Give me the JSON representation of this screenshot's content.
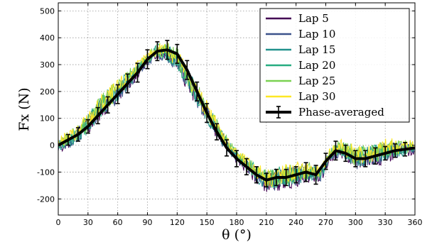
{
  "chart_data": {
    "type": "line",
    "xlabel": "θ (°)",
    "ylabel": "Fx (N)",
    "xlim": [
      0,
      360
    ],
    "ylim": [
      -260,
      530
    ],
    "x_ticks": [
      0,
      30,
      60,
      90,
      120,
      150,
      180,
      210,
      240,
      270,
      300,
      330,
      360
    ],
    "y_ticks": [
      -200,
      -100,
      0,
      100,
      200,
      300,
      400,
      500
    ],
    "grid": true,
    "legend_position": "top-right",
    "lap_profile": {
      "x": [
        0,
        15,
        30,
        45,
        60,
        75,
        90,
        100,
        110,
        120,
        135,
        150,
        165,
        180,
        195,
        210,
        225,
        240,
        255,
        265,
        275,
        285,
        300,
        315,
        330,
        345,
        360
      ],
      "y": [
        0,
        30,
        80,
        150,
        200,
        260,
        320,
        350,
        345,
        320,
        220,
        120,
        30,
        -40,
        -90,
        -130,
        -120,
        -110,
        -100,
        -110,
        -30,
        -10,
        -50,
        -40,
        -20,
        -15,
        -10
      ]
    },
    "series": [
      {
        "name": "Lap 5",
        "color": "#440154",
        "seed": 5
      },
      {
        "name": "Lap 10",
        "color": "#3b528b",
        "seed": 10
      },
      {
        "name": "Lap 15",
        "color": "#21918c",
        "seed": 15
      },
      {
        "name": "Lap 20",
        "color": "#27ad81",
        "seed": 20
      },
      {
        "name": "Lap 25",
        "color": "#7ad151",
        "seed": 25
      },
      {
        "name": "Lap 30",
        "color": "#fde725",
        "seed": 30
      }
    ],
    "phase_averaged": {
      "name": "Phase-averaged",
      "color": "#000000",
      "x": [
        0,
        10,
        20,
        30,
        40,
        50,
        60,
        70,
        80,
        90,
        100,
        110,
        120,
        130,
        140,
        150,
        160,
        170,
        180,
        190,
        200,
        210,
        220,
        230,
        240,
        250,
        260,
        270,
        280,
        290,
        300,
        310,
        320,
        330,
        340,
        350,
        360
      ],
      "y": [
        0,
        20,
        40,
        70,
        110,
        150,
        190,
        230,
        270,
        320,
        350,
        355,
        340,
        280,
        200,
        120,
        50,
        -10,
        -50,
        -80,
        -110,
        -130,
        -120,
        -120,
        -110,
        -100,
        -110,
        -60,
        -20,
        -30,
        -50,
        -50,
        -40,
        -30,
        -20,
        -15,
        -10
      ],
      "error": [
        20,
        20,
        25,
        25,
        30,
        30,
        35,
        35,
        35,
        35,
        35,
        35,
        35,
        35,
        35,
        35,
        30,
        30,
        30,
        30,
        30,
        25,
        30,
        30,
        30,
        35,
        35,
        30,
        35,
        30,
        30,
        30,
        30,
        25,
        25,
        25,
        20
      ]
    }
  }
}
